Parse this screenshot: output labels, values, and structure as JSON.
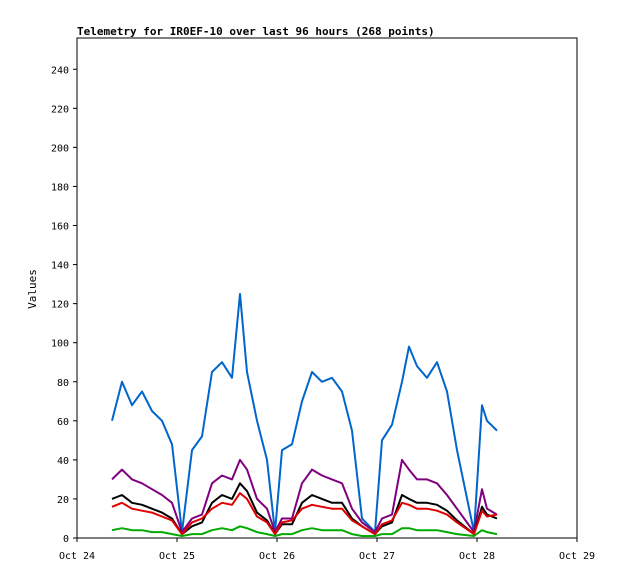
{
  "chart_data": {
    "type": "line",
    "title": "Telemetry for IR0EF-10 over last 96 hours (268 points)",
    "ylabel": "Values",
    "xlabel": "",
    "x_ticks": [
      "Oct 24",
      "Oct 25",
      "Oct 26",
      "Oct 27",
      "Oct 28",
      "Oct 29"
    ],
    "y_ticks": [
      0,
      20,
      40,
      60,
      80,
      100,
      120,
      140,
      160,
      180,
      200,
      220,
      240
    ],
    "xlim_days": [
      24,
      29
    ],
    "ylim": [
      0,
      256
    ],
    "legend": "none",
    "x": [
      24.35,
      24.45,
      24.55,
      24.65,
      24.75,
      24.85,
      24.95,
      25.05,
      25.15,
      25.25,
      25.35,
      25.45,
      25.55,
      25.63,
      25.7,
      25.8,
      25.9,
      25.98,
      26.05,
      26.15,
      26.25,
      26.35,
      26.45,
      26.55,
      26.65,
      26.75,
      26.85,
      26.98,
      27.05,
      27.15,
      27.25,
      27.32,
      27.4,
      27.5,
      27.6,
      27.7,
      27.8,
      27.97,
      28.05,
      28.1,
      28.2
    ],
    "series": [
      {
        "color": "#0066cc",
        "values": [
          60,
          80,
          68,
          75,
          65,
          60,
          48,
          3,
          45,
          52,
          85,
          90,
          82,
          125,
          85,
          60,
          40,
          3,
          45,
          48,
          70,
          85,
          80,
          82,
          75,
          55,
          10,
          3,
          50,
          58,
          80,
          98,
          88,
          82,
          90,
          75,
          45,
          3,
          68,
          60,
          55
        ]
      },
      {
        "color": "#800080",
        "values": [
          30,
          35,
          30,
          28,
          25,
          22,
          18,
          3,
          10,
          12,
          28,
          32,
          30,
          40,
          35,
          20,
          15,
          3,
          10,
          10,
          28,
          35,
          32,
          30,
          28,
          15,
          8,
          3,
          10,
          12,
          40,
          35,
          30,
          30,
          28,
          22,
          15,
          3,
          25,
          15,
          12
        ]
      },
      {
        "color": "#000000",
        "values": [
          20,
          22,
          18,
          17,
          15,
          13,
          10,
          2,
          6,
          8,
          18,
          22,
          20,
          28,
          24,
          13,
          9,
          2,
          7,
          7,
          18,
          22,
          20,
          18,
          18,
          10,
          6,
          2,
          6,
          8,
          22,
          20,
          18,
          18,
          17,
          14,
          9,
          2,
          16,
          12,
          10
        ]
      },
      {
        "color": "#e00000",
        "values": [
          16,
          18,
          15,
          14,
          13,
          11,
          9,
          2,
          8,
          10,
          15,
          18,
          17,
          23,
          20,
          11,
          8,
          2,
          8,
          9,
          15,
          17,
          16,
          15,
          15,
          9,
          6,
          2,
          7,
          9,
          18,
          17,
          15,
          15,
          14,
          12,
          8,
          2,
          14,
          11,
          12
        ]
      },
      {
        "color": "#00aa00",
        "values": [
          4,
          5,
          4,
          4,
          3,
          3,
          2,
          1,
          2,
          2,
          4,
          5,
          4,
          6,
          5,
          3,
          2,
          1,
          2,
          2,
          4,
          5,
          4,
          4,
          4,
          2,
          1,
          1,
          2,
          2,
          5,
          5,
          4,
          4,
          4,
          3,
          2,
          1,
          4,
          3,
          2
        ]
      }
    ]
  }
}
